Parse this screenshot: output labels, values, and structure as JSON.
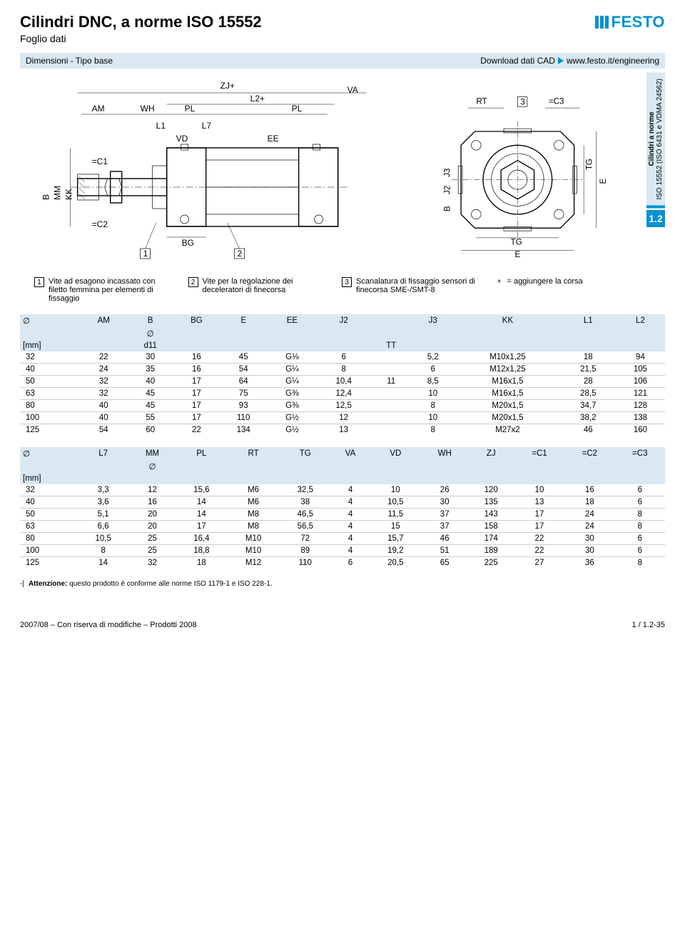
{
  "header": {
    "title": "Cilindri DNC, a norme ISO 15552",
    "subtitle": "Foglio dati",
    "logo_text": "FESTO",
    "logo_color": "#0092d0"
  },
  "section": {
    "left": "Dimensioni - Tipo base",
    "right_label": "Download dati CAD",
    "right_url": "www.festo.it/engineering"
  },
  "side_tab": {
    "line1": "Cilindri a norme",
    "line2": "ISO 15552 (ISO 6431 e VDMA 24562)",
    "number": "1.2",
    "bg": "#d9e8f2",
    "accent": "#0092d0"
  },
  "drawing_labels": {
    "left_top": [
      "AM",
      "WH",
      "PL",
      "PL",
      "ZJ+",
      "L2+",
      "VA"
    ],
    "left_mid": [
      "L1",
      "L7",
      "VD",
      "EE"
    ],
    "left_vert": [
      "B",
      "MM",
      "KK"
    ],
    "left_bottom": [
      "BG"
    ],
    "left_c": [
      "C1",
      "C2"
    ],
    "left_nums": [
      "1",
      "2"
    ],
    "right_top": [
      "RT",
      "3",
      "C3"
    ],
    "right_side": [
      "TG",
      "E"
    ],
    "right_bottom": [
      "TG",
      "E"
    ],
    "right_inner": [
      "J3",
      "J2",
      "B"
    ]
  },
  "callouts": [
    {
      "n": "1",
      "text": "Vite ad esagono incassato con filetto femmina per elementi di fissaggio"
    },
    {
      "n": "2",
      "text": "Vite per la regolazione dei deceleratori di finecorsa"
    },
    {
      "n": "3",
      "text": "Scanalatura di fissaggio sensori di finecorsa SME-/SMT-8"
    },
    {
      "n": "+",
      "text": "= aggiungere la corsa"
    }
  ],
  "table1": {
    "headers_row1": [
      "∅",
      "AM",
      "B",
      "BG",
      "E",
      "EE",
      "J2",
      "",
      "J3",
      "KK",
      "L1",
      "L2"
    ],
    "headers_row2": [
      "",
      "",
      "∅",
      "",
      "",
      "",
      "",
      "",
      "",
      "",
      "",
      ""
    ],
    "headers_row3": [
      "[mm]",
      "",
      "d11",
      "",
      "",
      "",
      "",
      "TT",
      "",
      "",
      "",
      ""
    ],
    "merge_j2": true,
    "rows": [
      [
        "32",
        "22",
        "30",
        "16",
        "45",
        "G⅛",
        "6",
        "",
        "5,2",
        "M10x1,25",
        "18",
        "94"
      ],
      [
        "40",
        "24",
        "35",
        "16",
        "54",
        "G¼",
        "8",
        "",
        "6",
        "M12x1,25",
        "21,5",
        "105"
      ],
      [
        "50",
        "32",
        "40",
        "17",
        "64",
        "G¼",
        "10,4",
        "11",
        "8,5",
        "M16x1,5",
        "28",
        "106"
      ],
      [
        "63",
        "32",
        "45",
        "17",
        "75",
        "G⅜",
        "12,4",
        "",
        "10",
        "M16x1,5",
        "28,5",
        "121"
      ],
      [
        "80",
        "40",
        "45",
        "17",
        "93",
        "G⅜",
        "12,5",
        "",
        "8",
        "M20x1,5",
        "34,7",
        "128"
      ],
      [
        "100",
        "40",
        "55",
        "17",
        "110",
        "G½",
        "12",
        "",
        "10",
        "M20x1,5",
        "38,2",
        "138"
      ],
      [
        "125",
        "54",
        "60",
        "22",
        "134",
        "G½",
        "13",
        "",
        "8",
        "M27x2",
        "46",
        "160"
      ]
    ]
  },
  "table2": {
    "headers_row1": [
      "∅",
      "L7",
      "MM",
      "PL",
      "RT",
      "TG",
      "VA",
      "VD",
      "WH",
      "ZJ",
      "=C1",
      "=C2",
      "=C3"
    ],
    "headers_row2": [
      "",
      "",
      "∅",
      "",
      "",
      "",
      "",
      "",
      "",
      "",
      "",
      "",
      ""
    ],
    "headers_row3": [
      "[mm]",
      "",
      "",
      "",
      "",
      "",
      "",
      "",
      "",
      "",
      "",
      "",
      ""
    ],
    "rows": [
      [
        "32",
        "3,3",
        "12",
        "15,6",
        "M6",
        "32,5",
        "4",
        "10",
        "26",
        "120",
        "10",
        "16",
        "6"
      ],
      [
        "40",
        "3,6",
        "16",
        "14",
        "M6",
        "38",
        "4",
        "10,5",
        "30",
        "135",
        "13",
        "18",
        "6"
      ],
      [
        "50",
        "5,1",
        "20",
        "14",
        "M8",
        "46,5",
        "4",
        "11,5",
        "37",
        "143",
        "17",
        "24",
        "8"
      ],
      [
        "63",
        "6,6",
        "20",
        "17",
        "M8",
        "56,5",
        "4",
        "15",
        "37",
        "158",
        "17",
        "24",
        "8"
      ],
      [
        "80",
        "10,5",
        "25",
        "16,4",
        "M10",
        "72",
        "4",
        "15,7",
        "46",
        "174",
        "22",
        "30",
        "6"
      ],
      [
        "100",
        "8",
        "25",
        "18,8",
        "M10",
        "89",
        "4",
        "19,2",
        "51",
        "189",
        "22",
        "30",
        "6"
      ],
      [
        "125",
        "14",
        "32",
        "18",
        "M12",
        "110",
        "6",
        "20,5",
        "65",
        "225",
        "27",
        "36",
        "8"
      ]
    ]
  },
  "footnote": {
    "mark": "-|",
    "bold": "Attenzione:",
    "text": "questo prodotto è conforme alle norme ISO 1179-1 e ISO 228-1."
  },
  "footer": {
    "left": "2007/08 – Con riserva di modifiche – Prodotti 2008",
    "right": "1 / 1.2-35"
  }
}
